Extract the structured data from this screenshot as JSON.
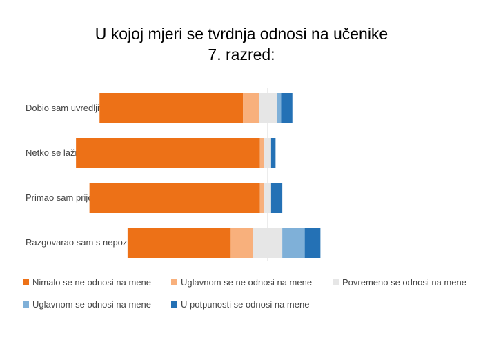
{
  "chart_data": {
    "type": "bar",
    "orientation": "horizontal",
    "stacked": "diverging",
    "title": "U kojoj mjeri se tvrdnja odnosi na učenike",
    "subtitle": "7. razred:",
    "categories": [
      "Dobio sam uvredljive i proste poruke u inbox",
      "Netko se lažno koristio mojim imenom",
      "Primao sam prijeteće poruke",
      "Razgovarao sam s nepoznatim ljudima"
    ],
    "series": [
      {
        "name": "Nimalo se ne odnosi na mene",
        "color": "#ED7117",
        "values": [
          0.64,
          0.82,
          0.76,
          0.46
        ]
      },
      {
        "name": "Uglavnom se ne odnosi na mene",
        "color": "#F8B07C",
        "values": [
          0.07,
          0.02,
          0.02,
          0.1
        ]
      },
      {
        "name": "Povremeno se odnosi na mene",
        "color": "#E6E6E6",
        "values": [
          0.08,
          0.03,
          0.03,
          0.13
        ]
      },
      {
        "name": "Uglavnom se odnosi na mene",
        "color": "#7FB0D8",
        "values": [
          0.02,
          0.0,
          0.0,
          0.1
        ]
      },
      {
        "name": "U potpunosti se odnosi na mene",
        "color": "#2471B5",
        "values": [
          0.05,
          0.02,
          0.05,
          0.07
        ]
      }
    ],
    "legend": "bottom",
    "grid": false
  }
}
